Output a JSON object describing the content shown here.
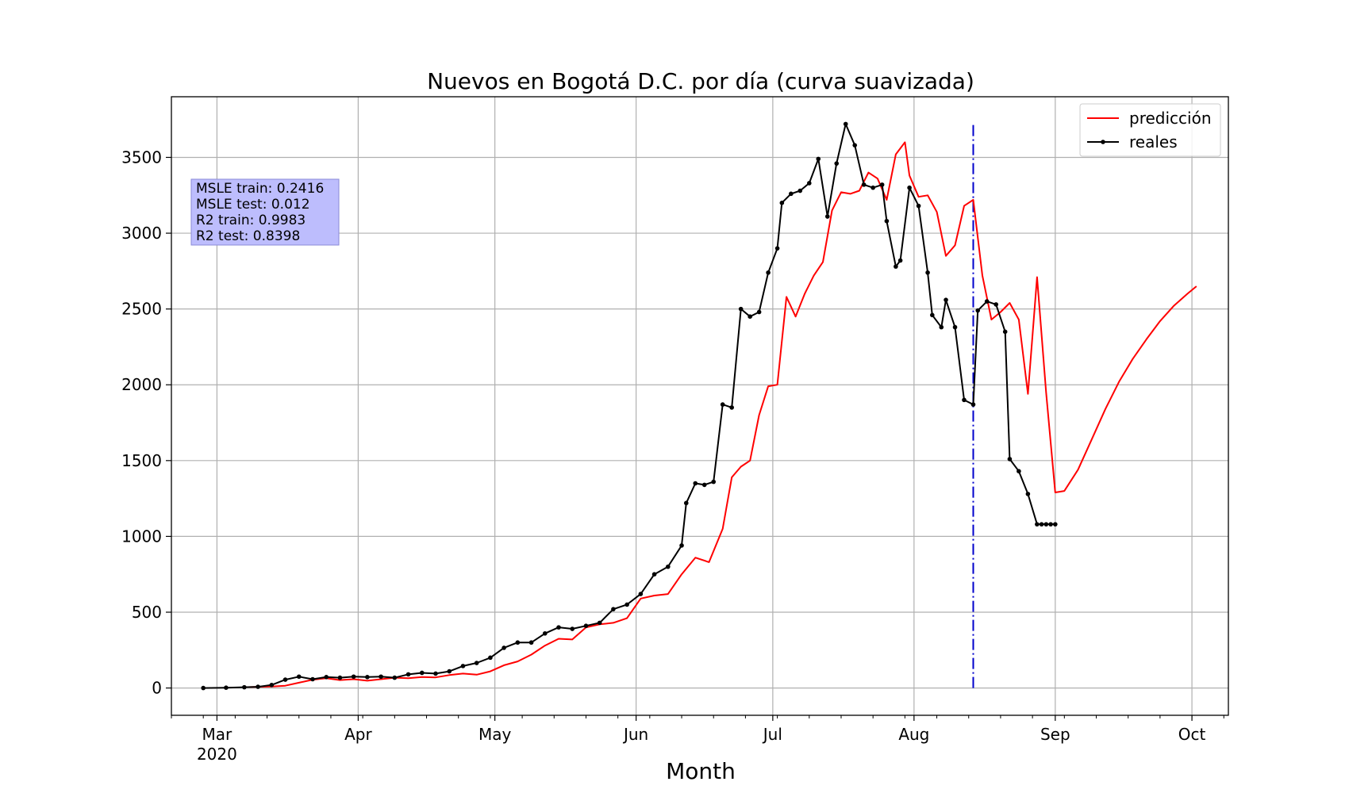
{
  "chart_data": {
    "type": "line",
    "title": "Nuevos en Bogotá D.C. por día (curva suavizada)",
    "xlabel": "Month",
    "ylabel": "",
    "xlim": [
      "2020-02-20",
      "2020-10-09"
    ],
    "ylim": [
      -180,
      3900
    ],
    "y_ticks": [
      0,
      500,
      1000,
      1500,
      2000,
      2500,
      3000,
      3500
    ],
    "x_ticks": [
      {
        "date": "2020-03-01",
        "label": "Mar",
        "sublabel": "2020"
      },
      {
        "date": "2020-04-01",
        "label": "Apr",
        "sublabel": ""
      },
      {
        "date": "2020-05-01",
        "label": "May",
        "sublabel": ""
      },
      {
        "date": "2020-06-01",
        "label": "Jun",
        "sublabel": ""
      },
      {
        "date": "2020-07-01",
        "label": "Jul",
        "sublabel": ""
      },
      {
        "date": "2020-08-01",
        "label": "Aug",
        "sublabel": ""
      },
      {
        "date": "2020-09-01",
        "label": "Sep",
        "sublabel": ""
      },
      {
        "date": "2020-10-01",
        "label": "Oct",
        "sublabel": ""
      }
    ],
    "grid": true,
    "legend_position": "top-right",
    "split_date": "2020-08-14",
    "split_ylim": [
      0,
      3720
    ],
    "annotation": {
      "lines": [
        "MSLE train: 0.2416",
        "MSLE test: 0.012",
        "R2 train: 0.9983",
        "R2 test: 0.8398"
      ],
      "color": "#bdbdfd"
    },
    "series": [
      {
        "name": "predicción",
        "color": "#ff0000",
        "marker": false,
        "x": [
          "2020-03-07",
          "2020-03-10",
          "2020-03-13",
          "2020-03-16",
          "2020-03-19",
          "2020-03-22",
          "2020-03-25",
          "2020-03-28",
          "2020-03-31",
          "2020-04-03",
          "2020-04-06",
          "2020-04-09",
          "2020-04-12",
          "2020-04-15",
          "2020-04-18",
          "2020-04-21",
          "2020-04-24",
          "2020-04-27",
          "2020-04-30",
          "2020-05-03",
          "2020-05-06",
          "2020-05-09",
          "2020-05-12",
          "2020-05-15",
          "2020-05-18",
          "2020-05-21",
          "2020-05-24",
          "2020-05-27",
          "2020-05-30",
          "2020-06-02",
          "2020-06-05",
          "2020-06-08",
          "2020-06-11",
          "2020-06-14",
          "2020-06-17",
          "2020-06-20",
          "2020-06-22",
          "2020-06-24",
          "2020-06-26",
          "2020-06-28",
          "2020-06-30",
          "2020-07-02",
          "2020-07-04",
          "2020-07-06",
          "2020-07-08",
          "2020-07-10",
          "2020-07-12",
          "2020-07-14",
          "2020-07-16",
          "2020-07-18",
          "2020-07-20",
          "2020-07-22",
          "2020-07-24",
          "2020-07-26",
          "2020-07-28",
          "2020-07-30",
          "2020-07-31",
          "2020-08-02",
          "2020-08-04",
          "2020-08-06",
          "2020-08-08",
          "2020-08-10",
          "2020-08-12",
          "2020-08-14",
          "2020-08-16",
          "2020-08-18",
          "2020-08-20",
          "2020-08-22",
          "2020-08-24",
          "2020-08-26",
          "2020-08-28",
          "2020-08-30",
          "2020-09-01",
          "2020-09-03",
          "2020-09-06",
          "2020-09-09",
          "2020-09-12",
          "2020-09-15",
          "2020-09-18",
          "2020-09-21",
          "2020-09-24",
          "2020-09-27",
          "2020-09-30",
          "2020-10-02"
        ],
        "y": [
          5,
          8,
          10,
          15,
          35,
          55,
          65,
          52,
          58,
          48,
          58,
          68,
          65,
          72,
          70,
          85,
          95,
          88,
          110,
          150,
          175,
          220,
          280,
          325,
          320,
          400,
          420,
          430,
          460,
          590,
          610,
          620,
          750,
          860,
          830,
          1050,
          1390,
          1460,
          1500,
          1800,
          1990,
          2000,
          2580,
          2450,
          2600,
          2720,
          2810,
          3150,
          3270,
          3260,
          3280,
          3400,
          3360,
          3220,
          3520,
          3600,
          3380,
          3240,
          3250,
          3140,
          2850,
          2920,
          3180,
          3220,
          2720,
          2430,
          2480,
          2540,
          2430,
          1940,
          2710,
          1950,
          1290,
          1300,
          1440,
          1640,
          1840,
          2020,
          2170,
          2300,
          2420,
          2520,
          2600,
          2650
        ]
      },
      {
        "name": "reales",
        "color": "#000000",
        "marker": true,
        "x": [
          "2020-02-27",
          "2020-03-03",
          "2020-03-07",
          "2020-03-10",
          "2020-03-13",
          "2020-03-16",
          "2020-03-19",
          "2020-03-22",
          "2020-03-25",
          "2020-03-28",
          "2020-03-31",
          "2020-04-03",
          "2020-04-06",
          "2020-04-09",
          "2020-04-12",
          "2020-04-15",
          "2020-04-18",
          "2020-04-21",
          "2020-04-24",
          "2020-04-27",
          "2020-04-30",
          "2020-05-03",
          "2020-05-06",
          "2020-05-09",
          "2020-05-12",
          "2020-05-15",
          "2020-05-18",
          "2020-05-21",
          "2020-05-24",
          "2020-05-27",
          "2020-05-30",
          "2020-06-02",
          "2020-06-05",
          "2020-06-08",
          "2020-06-11",
          "2020-06-12",
          "2020-06-14",
          "2020-06-16",
          "2020-06-18",
          "2020-06-20",
          "2020-06-22",
          "2020-06-24",
          "2020-06-26",
          "2020-06-28",
          "2020-06-30",
          "2020-07-02",
          "2020-07-03",
          "2020-07-05",
          "2020-07-07",
          "2020-07-09",
          "2020-07-11",
          "2020-07-13",
          "2020-07-15",
          "2020-07-17",
          "2020-07-19",
          "2020-07-21",
          "2020-07-23",
          "2020-07-25",
          "2020-07-26",
          "2020-07-28",
          "2020-07-29",
          "2020-07-31",
          "2020-08-02",
          "2020-08-04",
          "2020-08-05",
          "2020-08-07",
          "2020-08-08",
          "2020-08-10",
          "2020-08-12",
          "2020-08-14",
          "2020-08-15",
          "2020-08-17",
          "2020-08-19",
          "2020-08-21",
          "2020-08-22",
          "2020-08-24",
          "2020-08-26",
          "2020-08-28",
          "2020-08-29",
          "2020-08-30",
          "2020-08-31",
          "2020-09-01"
        ],
        "y": [
          0,
          2,
          5,
          8,
          20,
          55,
          75,
          58,
          72,
          68,
          75,
          72,
          75,
          68,
          90,
          100,
          95,
          110,
          145,
          165,
          200,
          265,
          300,
          300,
          360,
          400,
          390,
          410,
          430,
          520,
          550,
          620,
          750,
          800,
          940,
          1220,
          1350,
          1340,
          1360,
          1870,
          1850,
          2500,
          2450,
          2480,
          2740,
          2900,
          3200,
          3260,
          3280,
          3330,
          3490,
          3110,
          3460,
          3720,
          3580,
          3320,
          3300,
          3320,
          3080,
          2780,
          2820,
          3300,
          3180,
          2740,
          2460,
          2380,
          2560,
          2380,
          1900,
          1870,
          2490,
          2550,
          2530,
          2350,
          1510,
          1430,
          1280,
          1080,
          1080,
          1080,
          1080,
          1080
        ]
      }
    ]
  }
}
